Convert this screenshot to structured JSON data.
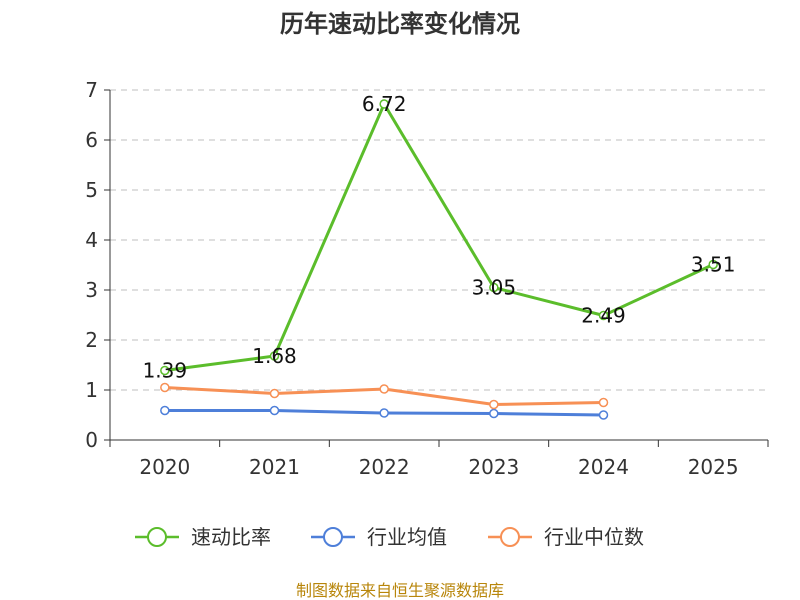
{
  "chart_data": {
    "type": "line",
    "title": "历年速动比率变化情况",
    "categories": [
      "2020",
      "2021",
      "2022",
      "2023",
      "2024",
      "2025"
    ],
    "ylim": [
      0,
      7
    ],
    "yticks": [
      0,
      1,
      2,
      3,
      4,
      5,
      6,
      7
    ],
    "grid": true,
    "legend_position": "bottom",
    "series": [
      {
        "name": "速动比率",
        "color": "#5bbd2b",
        "values": [
          1.39,
          1.68,
          6.72,
          3.05,
          2.49,
          3.51
        ],
        "labels": [
          "1.39",
          "1.68",
          "6.72",
          "3.05",
          "2.49",
          "3.51"
        ]
      },
      {
        "name": "行业均值",
        "color": "#4e7fd9",
        "values": [
          0.59,
          0.59,
          0.54,
          0.53,
          0.5,
          null
        ]
      },
      {
        "name": "行业中位数",
        "color": "#f79055",
        "values": [
          1.05,
          0.93,
          1.02,
          0.71,
          0.75,
          null
        ]
      }
    ],
    "source": "制图数据来自恒生聚源数据库"
  }
}
